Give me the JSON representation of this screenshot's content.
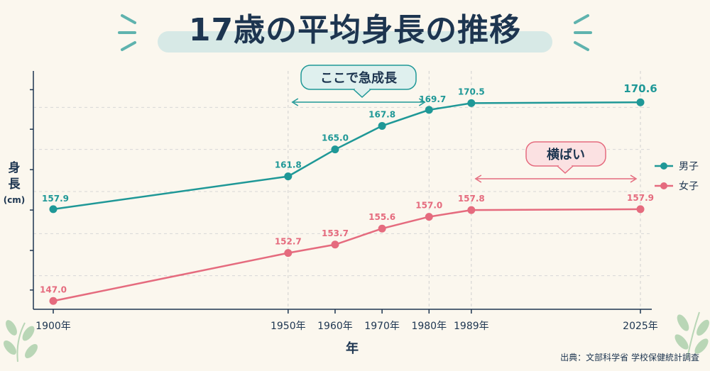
{
  "title": "17歳の平均身長の推移",
  "source": "出典：文部科学省 学校保健統計調査",
  "colors": {
    "boys": "#1f9897",
    "girls": "#e56b7e",
    "title": "#1d3550",
    "axis": "#1d3550",
    "bg": "#fbf7ee"
  },
  "annotations": {
    "rapid": "ここで急成長",
    "flat": "横ばい"
  },
  "chart_data": {
    "type": "line",
    "title": "17歳の平均身長の推移",
    "xlabel": "年",
    "ylabel": "身長(cm)",
    "x": [
      1900,
      1950,
      1960,
      1970,
      1980,
      1989,
      2025
    ],
    "x_tick_labels": [
      "1900年",
      "1950年",
      "1960年",
      "1970年",
      "1980年",
      "1989年",
      "2025年"
    ],
    "series": [
      {
        "name": "男子",
        "values": [
          157.9,
          161.8,
          165.0,
          167.8,
          169.7,
          170.5,
          170.6
        ],
        "labels": [
          "157.9",
          "161.8",
          "165.0",
          "167.8",
          "169.7",
          "170.5",
          "170.6"
        ]
      },
      {
        "name": "女子",
        "values": [
          147.0,
          152.7,
          153.7,
          155.6,
          157.0,
          157.8,
          157.9
        ],
        "labels": [
          "147.0",
          "152.7",
          "153.7",
          "155.6",
          "157.0",
          "157.8",
          "157.9"
        ]
      }
    ],
    "ylim": [
      145,
      175
    ],
    "grid": true,
    "legend": "right"
  }
}
